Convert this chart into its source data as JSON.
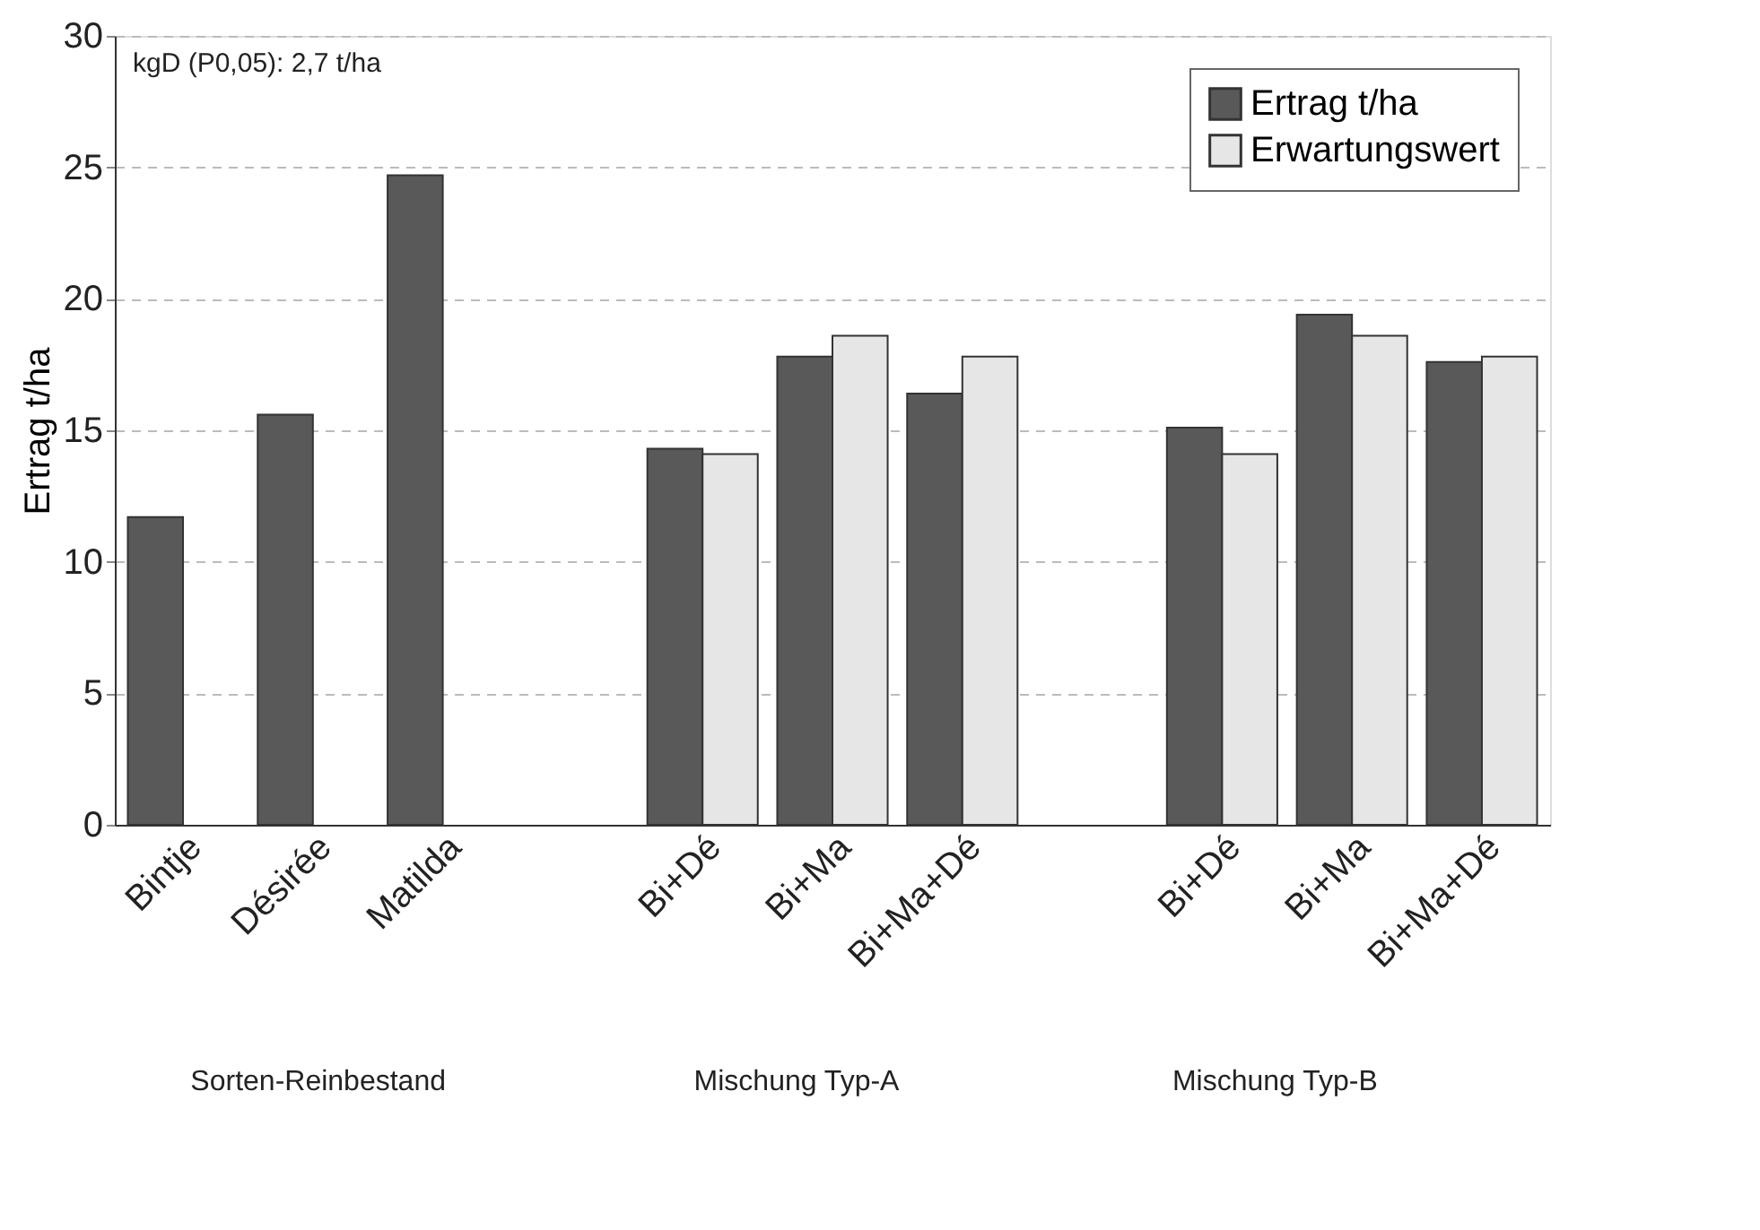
{
  "chart_data": {
    "type": "bar",
    "ylabel": "Ertrag t/ha",
    "categories": [
      "Bintje",
      "Désirée",
      "Matilda",
      null,
      "Bi+Dé",
      "Bi+Ma",
      "Bi+Ma+Dé",
      null,
      "Bi+Dé",
      "Bi+Ma",
      "Bi+Ma+Dé"
    ],
    "series": [
      {
        "name": "Ertrag t/ha",
        "color": "#595959",
        "values": [
          11.7,
          15.6,
          24.7,
          null,
          14.3,
          17.8,
          16.4,
          null,
          15.1,
          19.4,
          17.6
        ]
      },
      {
        "name": "Erwartungswert",
        "color": "#e6e6e6",
        "values": [
          null,
          null,
          null,
          null,
          14.1,
          18.6,
          17.8,
          null,
          14.1,
          18.6,
          17.8
        ]
      }
    ],
    "ylim": [
      0,
      30
    ],
    "yticks": [
      0,
      5,
      10,
      15,
      20,
      25,
      30
    ],
    "grid": "y",
    "legend": "top right",
    "annotations": [
      "kgD (P0,05): 2,7 t/ha",
      "Sorten-Reinbestand",
      "Mischung Typ-A",
      "Mischung Typ-B"
    ]
  }
}
